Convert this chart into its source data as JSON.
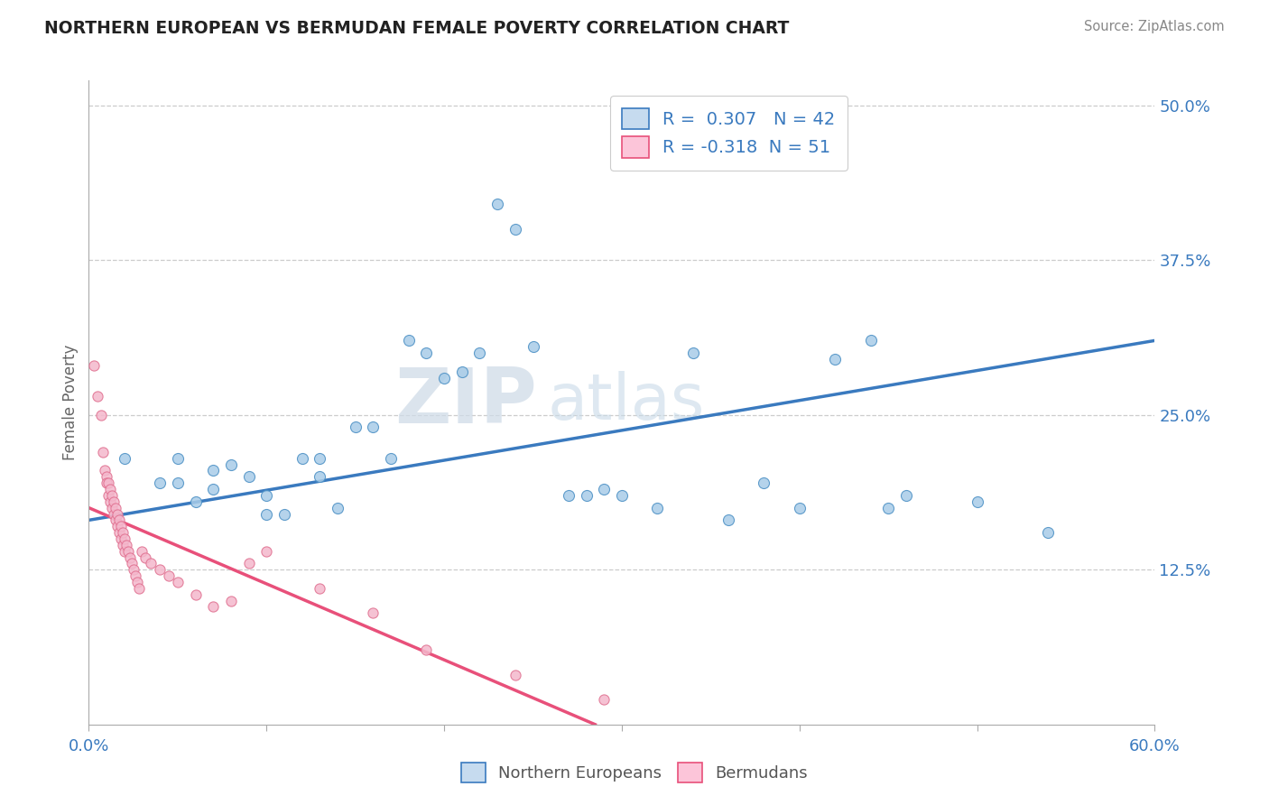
{
  "title": "NORTHERN EUROPEAN VS BERMUDAN FEMALE POVERTY CORRELATION CHART",
  "source": "Source: ZipAtlas.com",
  "ylabel": "Female Poverty",
  "xlim": [
    0.0,
    0.6
  ],
  "ylim": [
    0.0,
    0.52
  ],
  "yticks_right": [
    0.125,
    0.25,
    0.375,
    0.5
  ],
  "ytick_right_labels": [
    "12.5%",
    "25.0%",
    "37.5%",
    "50.0%"
  ],
  "R_blue": 0.307,
  "N_blue": 42,
  "R_pink": -0.318,
  "N_pink": 51,
  "blue_color": "#a8cce8",
  "pink_color": "#f4b8cc",
  "blue_edge": "#4a8fc4",
  "pink_edge": "#e07090",
  "blue_line_color": "#3a7abf",
  "pink_line_color": "#e8507a",
  "legend_blue_face": "#c6dbef",
  "legend_pink_face": "#fcc5d9",
  "blue_scatter_x": [
    0.02,
    0.04,
    0.05,
    0.05,
    0.06,
    0.07,
    0.07,
    0.08,
    0.09,
    0.1,
    0.1,
    0.11,
    0.12,
    0.13,
    0.13,
    0.14,
    0.15,
    0.16,
    0.17,
    0.18,
    0.19,
    0.2,
    0.21,
    0.22,
    0.23,
    0.24,
    0.25,
    0.27,
    0.28,
    0.29,
    0.3,
    0.32,
    0.34,
    0.36,
    0.38,
    0.4,
    0.42,
    0.44,
    0.45,
    0.46,
    0.5,
    0.54
  ],
  "blue_scatter_y": [
    0.215,
    0.195,
    0.215,
    0.195,
    0.18,
    0.205,
    0.19,
    0.21,
    0.2,
    0.185,
    0.17,
    0.17,
    0.215,
    0.215,
    0.2,
    0.175,
    0.24,
    0.24,
    0.215,
    0.31,
    0.3,
    0.28,
    0.285,
    0.3,
    0.42,
    0.4,
    0.305,
    0.185,
    0.185,
    0.19,
    0.185,
    0.175,
    0.3,
    0.165,
    0.195,
    0.175,
    0.295,
    0.31,
    0.175,
    0.185,
    0.18,
    0.155
  ],
  "pink_scatter_x": [
    0.003,
    0.005,
    0.007,
    0.008,
    0.009,
    0.01,
    0.01,
    0.011,
    0.011,
    0.012,
    0.012,
    0.013,
    0.013,
    0.014,
    0.014,
    0.015,
    0.015,
    0.016,
    0.016,
    0.017,
    0.017,
    0.018,
    0.018,
    0.019,
    0.019,
    0.02,
    0.02,
    0.021,
    0.022,
    0.023,
    0.024,
    0.025,
    0.026,
    0.027,
    0.028,
    0.03,
    0.032,
    0.035,
    0.04,
    0.045,
    0.05,
    0.06,
    0.07,
    0.08,
    0.09,
    0.1,
    0.13,
    0.16,
    0.19,
    0.24,
    0.29
  ],
  "pink_scatter_y": [
    0.29,
    0.265,
    0.25,
    0.22,
    0.205,
    0.2,
    0.195,
    0.195,
    0.185,
    0.19,
    0.18,
    0.185,
    0.175,
    0.18,
    0.17,
    0.175,
    0.165,
    0.17,
    0.16,
    0.165,
    0.155,
    0.16,
    0.15,
    0.155,
    0.145,
    0.15,
    0.14,
    0.145,
    0.14,
    0.135,
    0.13,
    0.125,
    0.12,
    0.115,
    0.11,
    0.14,
    0.135,
    0.13,
    0.125,
    0.12,
    0.115,
    0.105,
    0.095,
    0.1,
    0.13,
    0.14,
    0.11,
    0.09,
    0.06,
    0.04,
    0.02
  ],
  "blue_line_x": [
    0.0,
    0.6
  ],
  "blue_line_y": [
    0.165,
    0.31
  ],
  "pink_line_x": [
    0.0,
    0.285
  ],
  "pink_line_y": [
    0.175,
    0.0
  ]
}
